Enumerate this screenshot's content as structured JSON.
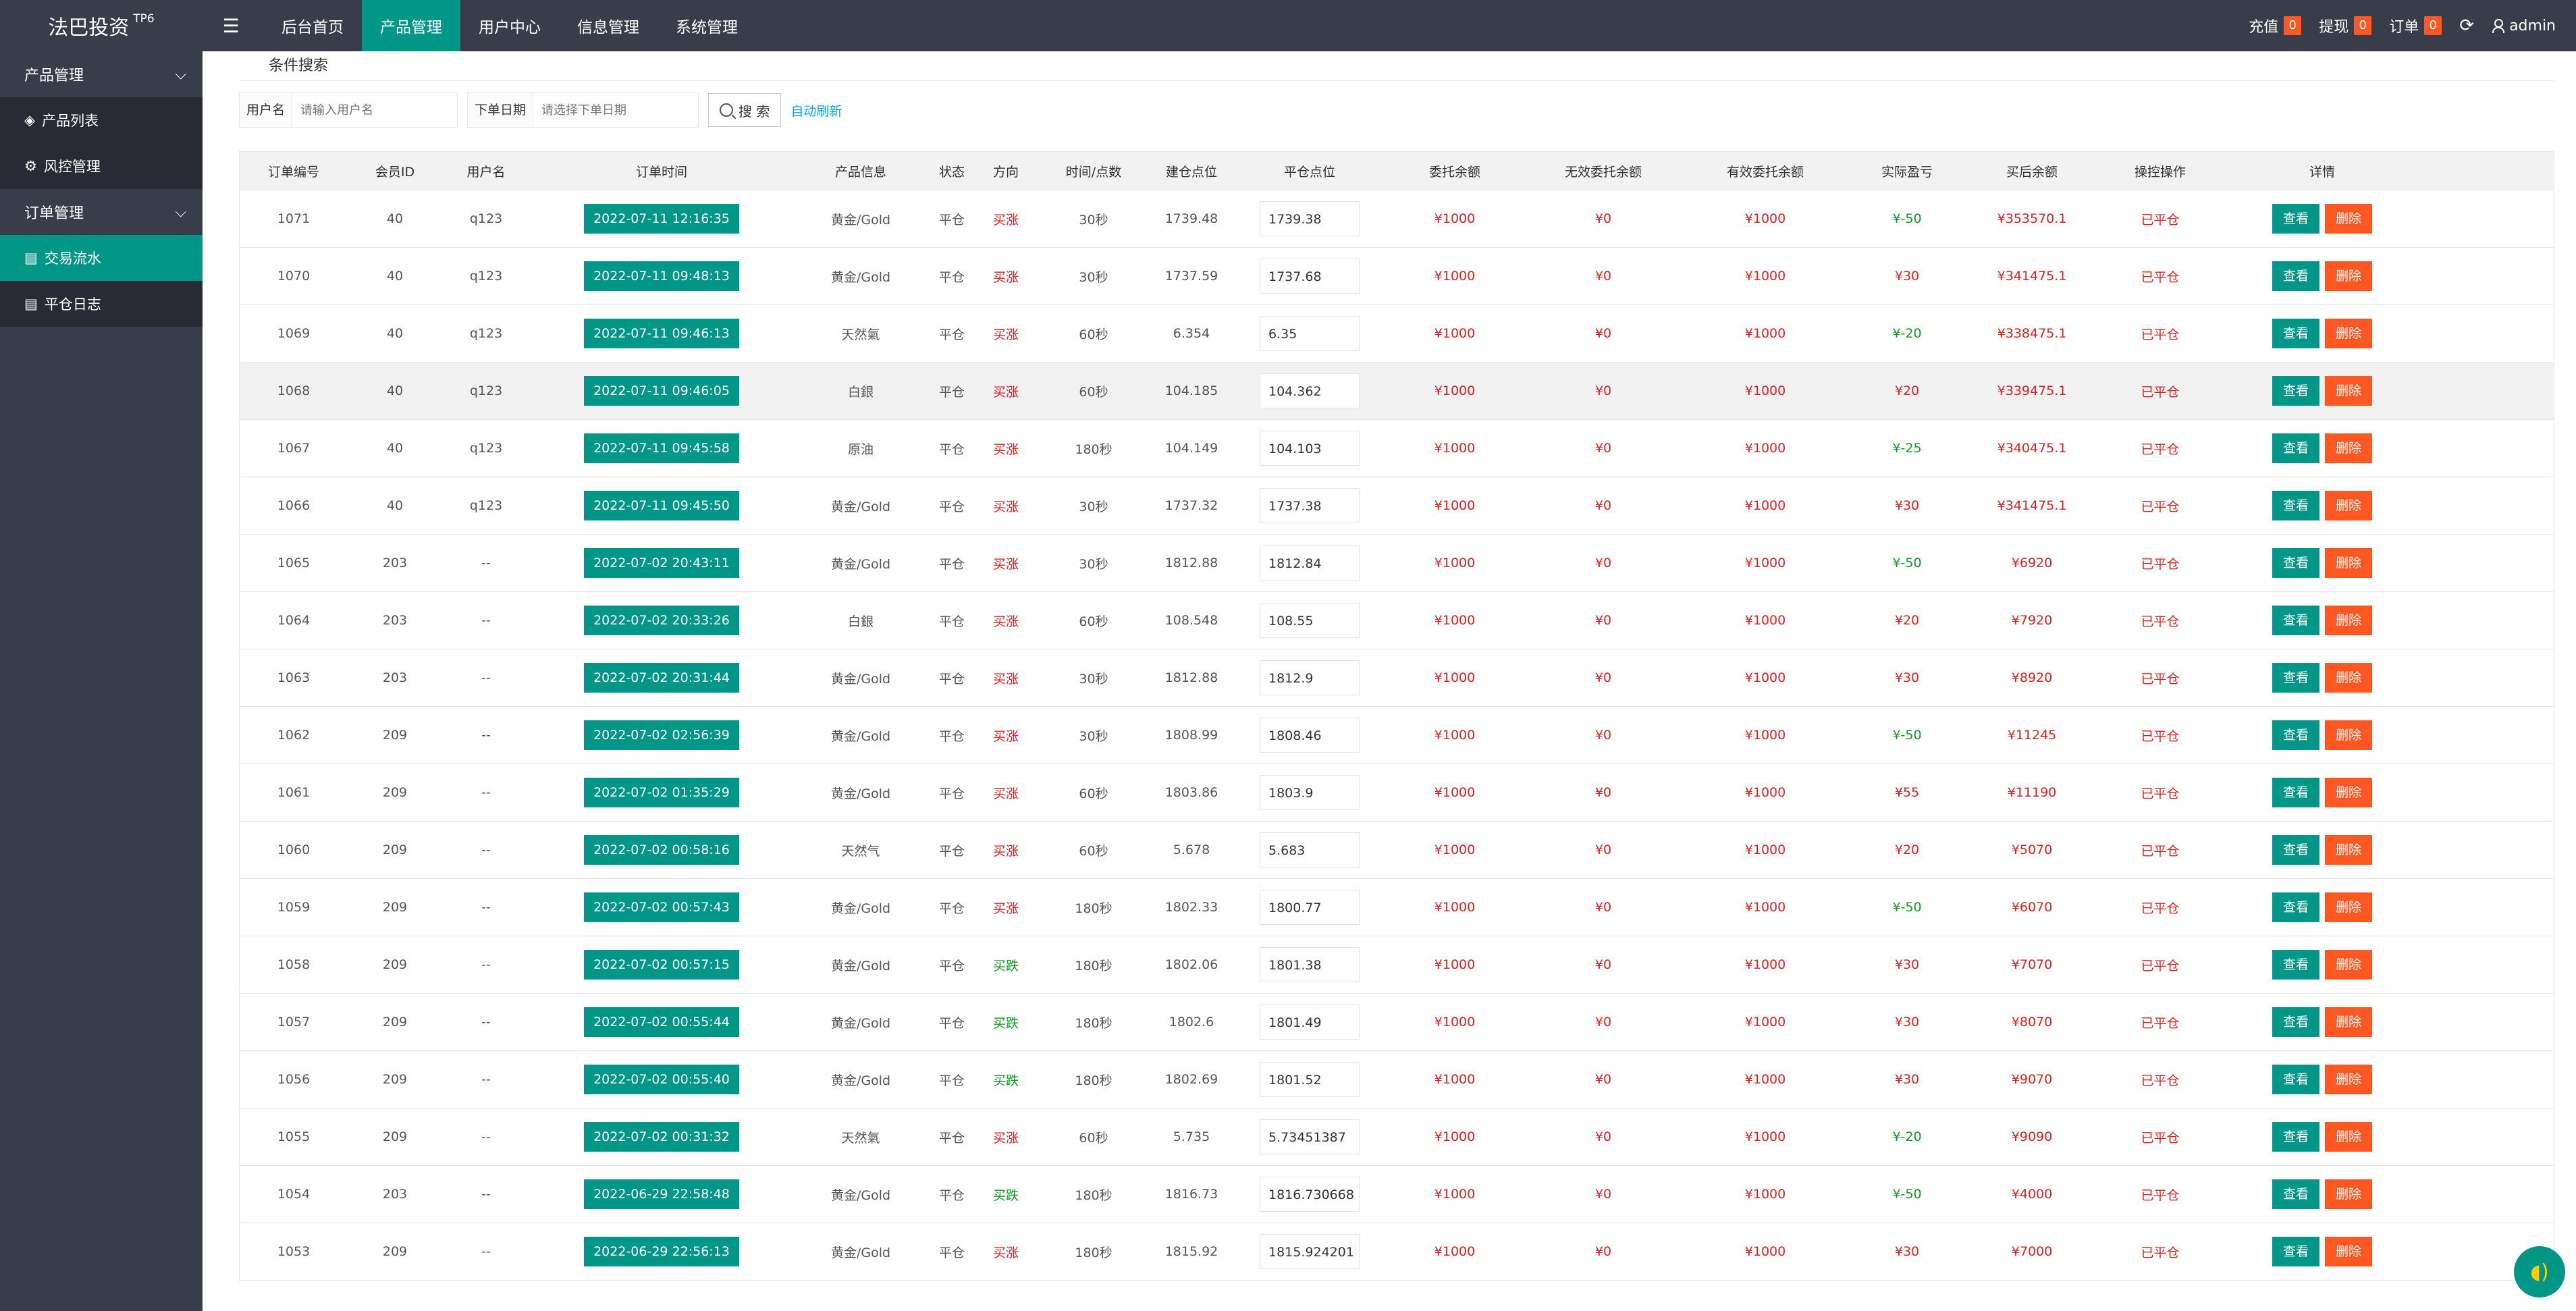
{
  "header": {
    "logo": "法巴投资",
    "logo_sup": "TP6",
    "nav": [
      "后台首页",
      "产品管理",
      "用户中心",
      "信息管理",
      "系统管理"
    ],
    "active_nav": 1,
    "right": {
      "recharge_label": "充值",
      "recharge_count": "0",
      "withdraw_label": "提现",
      "withdraw_count": "0",
      "order_label": "订单",
      "order_count": "0",
      "refresh_icon": "refresh-icon",
      "user": "admin"
    }
  },
  "sidebar": {
    "group1": "产品管理",
    "item_product_list": "产品列表",
    "item_risk": "风控管理",
    "group2": "订单管理",
    "item_trade_flow": "交易流水",
    "item_close_log": "平仓日志"
  },
  "search": {
    "title": "条件搜索",
    "username_label": "用户名",
    "username_placeholder": "请输入用户名",
    "date_label": "下单日期",
    "date_placeholder": "请选择下单日期",
    "search_button": "搜 索",
    "auto_refresh": "自动刷新"
  },
  "table": {
    "columns": [
      "订单编号",
      "会员ID",
      "用户名",
      "订单时间",
      "产品信息",
      "状态",
      "方向",
      "时间/点数",
      "建仓点位",
      "平仓点位",
      "委托余额",
      "无效委托余额",
      "有效委托余额",
      "实际盈亏",
      "买后余额",
      "操控操作",
      "详情"
    ],
    "view_label": "查看",
    "delete_label": "删除",
    "rows": [
      {
        "id": "1071",
        "uid": "40",
        "user": "q123",
        "time": "2022-07-11 12:16:35",
        "product": "黄金/Gold",
        "status": "平仓",
        "dir": "买涨",
        "dur": "30秒",
        "open": "1739.48",
        "close": "1739.38",
        "entrust": "¥1000",
        "invalid": "¥0",
        "valid": "¥1000",
        "pnl": "¥-50",
        "after": "¥353570.1",
        "op": "已平仓"
      },
      {
        "id": "1070",
        "uid": "40",
        "user": "q123",
        "time": "2022-07-11 09:48:13",
        "product": "黄金/Gold",
        "status": "平仓",
        "dir": "买涨",
        "dur": "30秒",
        "open": "1737.59",
        "close": "1737.68",
        "entrust": "¥1000",
        "invalid": "¥0",
        "valid": "¥1000",
        "pnl": "¥30",
        "after": "¥341475.1",
        "op": "已平仓"
      },
      {
        "id": "1069",
        "uid": "40",
        "user": "q123",
        "time": "2022-07-11 09:46:13",
        "product": "天然氣",
        "status": "平仓",
        "dir": "买涨",
        "dur": "60秒",
        "open": "6.354",
        "close": "6.35",
        "entrust": "¥1000",
        "invalid": "¥0",
        "valid": "¥1000",
        "pnl": "¥-20",
        "after": "¥338475.1",
        "op": "已平仓"
      },
      {
        "id": "1068",
        "uid": "40",
        "user": "q123",
        "time": "2022-07-11 09:46:05",
        "product": "白銀",
        "status": "平仓",
        "dir": "买涨",
        "dur": "60秒",
        "open": "104.185",
        "close": "104.362",
        "entrust": "¥1000",
        "invalid": "¥0",
        "valid": "¥1000",
        "pnl": "¥20",
        "after": "¥339475.1",
        "op": "已平仓"
      },
      {
        "id": "1067",
        "uid": "40",
        "user": "q123",
        "time": "2022-07-11 09:45:58",
        "product": "原油",
        "status": "平仓",
        "dir": "买涨",
        "dur": "180秒",
        "open": "104.149",
        "close": "104.103",
        "entrust": "¥1000",
        "invalid": "¥0",
        "valid": "¥1000",
        "pnl": "¥-25",
        "after": "¥340475.1",
        "op": "已平仓"
      },
      {
        "id": "1066",
        "uid": "40",
        "user": "q123",
        "time": "2022-07-11 09:45:50",
        "product": "黄金/Gold",
        "status": "平仓",
        "dir": "买涨",
        "dur": "30秒",
        "open": "1737.32",
        "close": "1737.38",
        "entrust": "¥1000",
        "invalid": "¥0",
        "valid": "¥1000",
        "pnl": "¥30",
        "after": "¥341475.1",
        "op": "已平仓"
      },
      {
        "id": "1065",
        "uid": "203",
        "user": "--",
        "time": "2022-07-02 20:43:11",
        "product": "黄金/Gold",
        "status": "平仓",
        "dir": "买涨",
        "dur": "30秒",
        "open": "1812.88",
        "close": "1812.84",
        "entrust": "¥1000",
        "invalid": "¥0",
        "valid": "¥1000",
        "pnl": "¥-50",
        "after": "¥6920",
        "op": "已平仓"
      },
      {
        "id": "1064",
        "uid": "203",
        "user": "--",
        "time": "2022-07-02 20:33:26",
        "product": "白銀",
        "status": "平仓",
        "dir": "买涨",
        "dur": "60秒",
        "open": "108.548",
        "close": "108.55",
        "entrust": "¥1000",
        "invalid": "¥0",
        "valid": "¥1000",
        "pnl": "¥20",
        "after": "¥7920",
        "op": "已平仓"
      },
      {
        "id": "1063",
        "uid": "203",
        "user": "--",
        "time": "2022-07-02 20:31:44",
        "product": "黄金/Gold",
        "status": "平仓",
        "dir": "买涨",
        "dur": "30秒",
        "open": "1812.88",
        "close": "1812.9",
        "entrust": "¥1000",
        "invalid": "¥0",
        "valid": "¥1000",
        "pnl": "¥30",
        "after": "¥8920",
        "op": "已平仓"
      },
      {
        "id": "1062",
        "uid": "209",
        "user": "--",
        "time": "2022-07-02 02:56:39",
        "product": "黄金/Gold",
        "status": "平仓",
        "dir": "买涨",
        "dur": "30秒",
        "open": "1808.99",
        "close": "1808.46",
        "entrust": "¥1000",
        "invalid": "¥0",
        "valid": "¥1000",
        "pnl": "¥-50",
        "after": "¥11245",
        "op": "已平仓"
      },
      {
        "id": "1061",
        "uid": "209",
        "user": "--",
        "time": "2022-07-02 01:35:29",
        "product": "黄金/Gold",
        "status": "平仓",
        "dir": "买涨",
        "dur": "60秒",
        "open": "1803.86",
        "close": "1803.9",
        "entrust": "¥1000",
        "invalid": "¥0",
        "valid": "¥1000",
        "pnl": "¥55",
        "after": "¥11190",
        "op": "已平仓"
      },
      {
        "id": "1060",
        "uid": "209",
        "user": "--",
        "time": "2022-07-02 00:58:16",
        "product": "天然气",
        "status": "平仓",
        "dir": "买涨",
        "dur": "60秒",
        "open": "5.678",
        "close": "5.683",
        "entrust": "¥1000",
        "invalid": "¥0",
        "valid": "¥1000",
        "pnl": "¥20",
        "after": "¥5070",
        "op": "已平仓"
      },
      {
        "id": "1059",
        "uid": "209",
        "user": "--",
        "time": "2022-07-02 00:57:43",
        "product": "黄金/Gold",
        "status": "平仓",
        "dir": "买涨",
        "dur": "180秒",
        "open": "1802.33",
        "close": "1800.77",
        "entrust": "¥1000",
        "invalid": "¥0",
        "valid": "¥1000",
        "pnl": "¥-50",
        "after": "¥6070",
        "op": "已平仓"
      },
      {
        "id": "1058",
        "uid": "209",
        "user": "--",
        "time": "2022-07-02 00:57:15",
        "product": "黄金/Gold",
        "status": "平仓",
        "dir": "买跌",
        "dur": "180秒",
        "open": "1802.06",
        "close": "1801.38",
        "entrust": "¥1000",
        "invalid": "¥0",
        "valid": "¥1000",
        "pnl": "¥30",
        "after": "¥7070",
        "op": "已平仓"
      },
      {
        "id": "1057",
        "uid": "209",
        "user": "--",
        "time": "2022-07-02 00:55:44",
        "product": "黄金/Gold",
        "status": "平仓",
        "dir": "买跌",
        "dur": "180秒",
        "open": "1802.6",
        "close": "1801.49",
        "entrust": "¥1000",
        "invalid": "¥0",
        "valid": "¥1000",
        "pnl": "¥30",
        "after": "¥8070",
        "op": "已平仓"
      },
      {
        "id": "1056",
        "uid": "209",
        "user": "--",
        "time": "2022-07-02 00:55:40",
        "product": "黄金/Gold",
        "status": "平仓",
        "dir": "买跌",
        "dur": "180秒",
        "open": "1802.69",
        "close": "1801.52",
        "entrust": "¥1000",
        "invalid": "¥0",
        "valid": "¥1000",
        "pnl": "¥30",
        "after": "¥9070",
        "op": "已平仓"
      },
      {
        "id": "1055",
        "uid": "209",
        "user": "--",
        "time": "2022-07-02 00:31:32",
        "product": "天然氣",
        "status": "平仓",
        "dir": "买涨",
        "dur": "60秒",
        "open": "5.735",
        "close": "5.73451387",
        "entrust": "¥1000",
        "invalid": "¥0",
        "valid": "¥1000",
        "pnl": "¥-20",
        "after": "¥9090",
        "op": "已平仓"
      },
      {
        "id": "1054",
        "uid": "203",
        "user": "--",
        "time": "2022-06-29 22:58:48",
        "product": "黄金/Gold",
        "status": "平仓",
        "dir": "买跌",
        "dur": "180秒",
        "open": "1816.73",
        "close": "1816.730668",
        "entrust": "¥1000",
        "invalid": "¥0",
        "valid": "¥1000",
        "pnl": "¥-50",
        "after": "¥4000",
        "op": "已平仓"
      },
      {
        "id": "1053",
        "uid": "209",
        "user": "--",
        "time": "2022-06-29 22:56:13",
        "product": "黄金/Gold",
        "status": "平仓",
        "dir": "买涨",
        "dur": "180秒",
        "open": "1815.92",
        "close": "1815.924201",
        "entrust": "¥1000",
        "invalid": "¥0",
        "valid": "¥1000",
        "pnl": "¥30",
        "after": "¥7000",
        "op": "已平仓"
      }
    ]
  }
}
